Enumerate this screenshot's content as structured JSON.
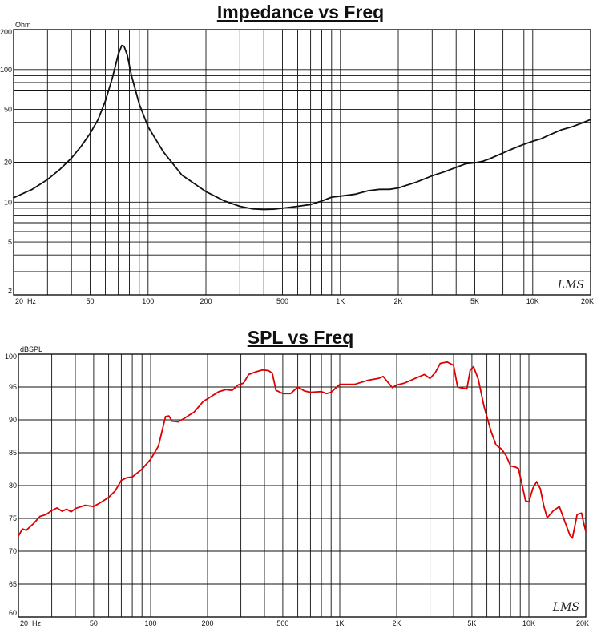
{
  "chart_data": [
    {
      "type": "line",
      "title": "Impedance vs Freq",
      "ylabel": "Ohm",
      "xscale": "log",
      "yscale": "log",
      "xlim": [
        20,
        20000
      ],
      "ylim": [
        2,
        200
      ],
      "grid": true,
      "x_tick_labels": [
        {
          "v": 20,
          "t": "20  Hz"
        },
        {
          "v": 50,
          "t": "50"
        },
        {
          "v": 100,
          "t": "100"
        },
        {
          "v": 200,
          "t": "200"
        },
        {
          "v": 500,
          "t": "500"
        },
        {
          "v": 1000,
          "t": "1K"
        },
        {
          "v": 2000,
          "t": "2K"
        },
        {
          "v": 5000,
          "t": "5K"
        },
        {
          "v": 10000,
          "t": "10K"
        },
        {
          "v": 20000,
          "t": "20K"
        }
      ],
      "y_tick_labels": [
        {
          "v": 200,
          "t": "200"
        },
        {
          "v": 100,
          "t": "100"
        },
        {
          "v": 50,
          "t": "50"
        },
        {
          "v": 20,
          "t": "20"
        },
        {
          "v": 10,
          "t": "10"
        },
        {
          "v": 5,
          "t": "5"
        },
        {
          "v": 2,
          "t": "2"
        }
      ],
      "series": [
        {
          "color": "#111111",
          "points": [
            [
              20,
              10.8
            ],
            [
              25,
              12.5
            ],
            [
              30,
              14.8
            ],
            [
              35,
              17.8
            ],
            [
              40,
              21.5
            ],
            [
              45,
              26.5
            ],
            [
              50,
              33
            ],
            [
              55,
              42
            ],
            [
              60,
              58
            ],
            [
              65,
              85
            ],
            [
              70,
              130
            ],
            [
              73,
              152
            ],
            [
              75,
              150
            ],
            [
              78,
              128
            ],
            [
              82,
              90
            ],
            [
              90,
              55
            ],
            [
              100,
              37
            ],
            [
              120,
              24
            ],
            [
              150,
              16
            ],
            [
              200,
              12
            ],
            [
              250,
              10.2
            ],
            [
              300,
              9.3
            ],
            [
              350,
              8.9
            ],
            [
              400,
              8.8
            ],
            [
              450,
              8.85
            ],
            [
              500,
              9
            ],
            [
              600,
              9.3
            ],
            [
              700,
              9.6
            ],
            [
              800,
              10.2
            ],
            [
              900,
              10.9
            ],
            [
              1000,
              11.1
            ],
            [
              1200,
              11.5
            ],
            [
              1400,
              12.2
            ],
            [
              1600,
              12.5
            ],
            [
              1800,
              12.5
            ],
            [
              2000,
              12.8
            ],
            [
              2500,
              14.2
            ],
            [
              3000,
              15.8
            ],
            [
              3500,
              17
            ],
            [
              4000,
              18.3
            ],
            [
              4500,
              19.5
            ],
            [
              5000,
              19.8
            ],
            [
              5500,
              20.3
            ],
            [
              6000,
              21.3
            ],
            [
              7000,
              23.5
            ],
            [
              8000,
              25.5
            ],
            [
              9000,
              27.3
            ],
            [
              10000,
              28.8
            ],
            [
              11000,
              30
            ],
            [
              12000,
              31.8
            ],
            [
              14000,
              35
            ],
            [
              16000,
              37
            ],
            [
              18000,
              39.5
            ],
            [
              20000,
              42
            ]
          ]
        }
      ],
      "watermark": "LMS"
    },
    {
      "type": "line",
      "title": "SPL vs Freq",
      "ylabel": "dBSPL",
      "xscale": "log",
      "yscale": "linear",
      "xlim": [
        20,
        20000
      ],
      "ylim": [
        60,
        100
      ],
      "grid": true,
      "x_tick_labels": [
        {
          "v": 20,
          "t": "20  Hz"
        },
        {
          "v": 50,
          "t": "50"
        },
        {
          "v": 100,
          "t": "100"
        },
        {
          "v": 200,
          "t": "200"
        },
        {
          "v": 500,
          "t": "500"
        },
        {
          "v": 1000,
          "t": "1K"
        },
        {
          "v": 2000,
          "t": "2K"
        },
        {
          "v": 5000,
          "t": "5K"
        },
        {
          "v": 10000,
          "t": "10K"
        },
        {
          "v": 20000,
          "t": "20K"
        }
      ],
      "y_tick_labels": [
        {
          "v": 100,
          "t": "100"
        },
        {
          "v": 95,
          "t": "95"
        },
        {
          "v": 90,
          "t": "90"
        },
        {
          "v": 85,
          "t": "85"
        },
        {
          "v": 80,
          "t": "80"
        },
        {
          "v": 75,
          "t": "75"
        },
        {
          "v": 70,
          "t": "70"
        },
        {
          "v": 65,
          "t": "65"
        },
        {
          "v": 60,
          "t": "60"
        }
      ],
      "series": [
        {
          "color": "#dd0000",
          "points": [
            [
              20,
              72.3
            ],
            [
              21,
              73.4
            ],
            [
              22,
              73.2
            ],
            [
              24,
              74.2
            ],
            [
              26,
              75.3
            ],
            [
              28,
              75.6
            ],
            [
              30,
              76.2
            ],
            [
              32,
              76.6
            ],
            [
              34,
              76.1
            ],
            [
              36,
              76.4
            ],
            [
              38,
              76.0
            ],
            [
              40,
              76.5
            ],
            [
              45,
              77.0
            ],
            [
              50,
              76.8
            ],
            [
              55,
              77.5
            ],
            [
              60,
              78.2
            ],
            [
              65,
              79.2
            ],
            [
              70,
              80.8
            ],
            [
              75,
              81.2
            ],
            [
              80,
              81.3
            ],
            [
              90,
              82.5
            ],
            [
              100,
              84
            ],
            [
              110,
              86
            ],
            [
              120,
              90.5
            ],
            [
              125,
              90.6
            ],
            [
              130,
              89.8
            ],
            [
              140,
              89.7
            ],
            [
              150,
              90.2
            ],
            [
              170,
              91.2
            ],
            [
              190,
              92.8
            ],
            [
              210,
              93.6
            ],
            [
              230,
              94.3
            ],
            [
              250,
              94.6
            ],
            [
              270,
              94.5
            ],
            [
              290,
              95.3
            ],
            [
              310,
              95.6
            ],
            [
              330,
              96.9
            ],
            [
              360,
              97.3
            ],
            [
              390,
              97.6
            ],
            [
              420,
              97.5
            ],
            [
              440,
              97.1
            ],
            [
              460,
              94.5
            ],
            [
              500,
              94.0
            ],
            [
              550,
              94.0
            ],
            [
              600,
              95.0
            ],
            [
              650,
              94.4
            ],
            [
              700,
              94.2
            ],
            [
              800,
              94.3
            ],
            [
              850,
              94.0
            ],
            [
              900,
              94.2
            ],
            [
              1000,
              95.4
            ],
            [
              1200,
              95.4
            ],
            [
              1400,
              96.0
            ],
            [
              1600,
              96.3
            ],
            [
              1700,
              96.6
            ],
            [
              1800,
              95.7
            ],
            [
              1900,
              94.9
            ],
            [
              2000,
              95.3
            ],
            [
              2200,
              95.6
            ],
            [
              2500,
              96.3
            ],
            [
              2800,
              96.9
            ],
            [
              3000,
              96.3
            ],
            [
              3200,
              97.2
            ],
            [
              3400,
              98.6
            ],
            [
              3700,
              98.8
            ],
            [
              4000,
              98.3
            ],
            [
              4200,
              95.0
            ],
            [
              4500,
              94.8
            ],
            [
              4700,
              94.7
            ],
            [
              4900,
              97.6
            ],
            [
              5100,
              98.1
            ],
            [
              5400,
              96.2
            ],
            [
              5800,
              92
            ],
            [
              6300,
              88.3
            ],
            [
              6700,
              86.2
            ],
            [
              7200,
              85.5
            ],
            [
              7600,
              84.5
            ],
            [
              8000,
              83
            ],
            [
              8500,
              82.8
            ],
            [
              8800,
              82.6
            ],
            [
              9200,
              80.2
            ],
            [
              9600,
              77.7
            ],
            [
              10000,
              77.5
            ],
            [
              10500,
              79.6
            ],
            [
              11000,
              80.6
            ],
            [
              11500,
              79.5
            ],
            [
              12000,
              76.9
            ],
            [
              12500,
              75.1
            ],
            [
              13500,
              76.2
            ],
            [
              14500,
              76.8
            ],
            [
              15500,
              74.5
            ],
            [
              16500,
              72.4
            ],
            [
              17000,
              72.0
            ],
            [
              17500,
              73.8
            ],
            [
              18000,
              75.6
            ],
            [
              19000,
              75.8
            ],
            [
              19500,
              74.3
            ],
            [
              20000,
              73.0
            ]
          ]
        }
      ],
      "watermark": "LMS"
    }
  ]
}
